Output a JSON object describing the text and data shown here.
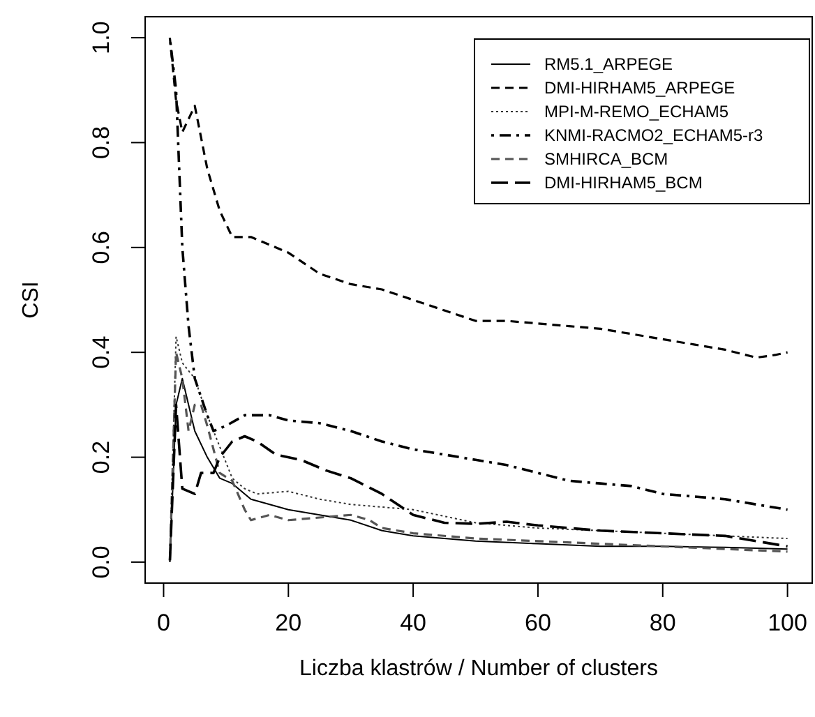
{
  "chart_data": {
    "type": "line",
    "xlabel": "Liczba klastrów / Number of clusters",
    "ylabel": "CSI",
    "xlim": [
      -2.96,
      103.96
    ],
    "ylim": [
      -0.04,
      1.04
    ],
    "xticks": [
      0,
      20,
      40,
      60,
      80,
      100
    ],
    "yticks": [
      {
        "value": 0,
        "label": "0.0"
      },
      {
        "value": 0.2,
        "label": "0.2"
      },
      {
        "value": 0.4,
        "label": "0.4"
      },
      {
        "value": 0.6,
        "label": "0.6"
      },
      {
        "value": 0.8,
        "label": "0.8"
      },
      {
        "value": 1,
        "label": "1.0"
      }
    ],
    "legend": "top right",
    "grid": false,
    "series": [
      {
        "name": "RM5.1_ARPEGE",
        "color": "#000000",
        "line_style": "solid",
        "x": [
          1,
          2,
          3,
          5,
          7,
          9,
          11,
          14,
          20,
          25,
          30,
          35,
          40,
          50,
          60,
          70,
          80,
          90,
          100
        ],
        "values": [
          0,
          0.3,
          0.35,
          0.25,
          0.2,
          0.16,
          0.15,
          0.12,
          0.1,
          0.09,
          0.08,
          0.06,
          0.05,
          0.04,
          0.035,
          0.03,
          0.03,
          0.028,
          0.025
        ]
      },
      {
        "name": "DMI-HIRHAM5_ARPEGE",
        "color": "#000000",
        "line_style": "dashed",
        "x": [
          1,
          2,
          3,
          5,
          7,
          9,
          11,
          14,
          20,
          25,
          30,
          35,
          40,
          45,
          50,
          55,
          60,
          65,
          70,
          75,
          80,
          85,
          90,
          95,
          98,
          100
        ],
        "values": [
          1,
          0.88,
          0.82,
          0.87,
          0.75,
          0.67,
          0.62,
          0.62,
          0.59,
          0.55,
          0.53,
          0.52,
          0.5,
          0.48,
          0.46,
          0.46,
          0.455,
          0.45,
          0.445,
          0.435,
          0.425,
          0.415,
          0.405,
          0.39,
          0.395,
          0.4
        ]
      },
      {
        "name": "MPI-M-REMO_ECHAM5",
        "color": "#333333",
        "line_style": "dotted",
        "x": [
          1,
          2,
          3,
          5,
          7,
          9,
          11,
          13,
          15,
          20,
          25,
          30,
          35,
          40,
          50,
          60,
          70,
          80,
          90,
          100
        ],
        "values": [
          0,
          0.43,
          0.38,
          0.35,
          0.28,
          0.22,
          0.16,
          0.14,
          0.13,
          0.135,
          0.12,
          0.11,
          0.105,
          0.1,
          0.075,
          0.065,
          0.06,
          0.055,
          0.05,
          0.045
        ]
      },
      {
        "name": "KNMI-RACMO2_ECHAM5-r3",
        "color": "#000000",
        "line_style": "dashdot",
        "x": [
          1,
          2,
          3,
          4,
          5,
          7,
          8,
          10,
          13,
          17,
          20,
          25,
          30,
          35,
          40,
          45,
          50,
          55,
          60,
          65,
          70,
          75,
          80,
          85,
          90,
          95,
          100
        ],
        "values": [
          1,
          0.9,
          0.6,
          0.45,
          0.35,
          0.28,
          0.25,
          0.26,
          0.28,
          0.28,
          0.27,
          0.265,
          0.25,
          0.23,
          0.215,
          0.205,
          0.195,
          0.185,
          0.17,
          0.155,
          0.15,
          0.145,
          0.13,
          0.125,
          0.12,
          0.11,
          0.1
        ]
      },
      {
        "name": "SMHIRCA_BCM",
        "color": "#555555",
        "line_style": "dashed",
        "x": [
          1,
          2,
          3,
          4,
          5,
          6,
          7,
          9,
          11,
          13,
          14,
          17,
          20,
          25,
          30,
          33,
          35,
          40,
          50,
          60,
          70,
          80,
          90,
          100
        ],
        "values": [
          0,
          0.4,
          0.35,
          0.25,
          0.3,
          0.3,
          0.26,
          0.17,
          0.155,
          0.1,
          0.08,
          0.09,
          0.08,
          0.085,
          0.09,
          0.08,
          0.065,
          0.055,
          0.045,
          0.04,
          0.035,
          0.03,
          0.025,
          0.02
        ]
      },
      {
        "name": "DMI-HIRHAM5_BCM",
        "color": "#000000",
        "line_style": "longdash",
        "x": [
          1,
          2,
          3,
          5,
          6,
          8,
          9,
          11,
          13,
          15,
          18,
          22,
          26,
          30,
          35,
          40,
          45,
          50,
          55,
          60,
          65,
          70,
          80,
          90,
          95,
          100
        ],
        "values": [
          0,
          0.3,
          0.14,
          0.13,
          0.17,
          0.17,
          0.2,
          0.23,
          0.24,
          0.23,
          0.205,
          0.195,
          0.175,
          0.16,
          0.13,
          0.09,
          0.075,
          0.073,
          0.077,
          0.07,
          0.065,
          0.06,
          0.055,
          0.05,
          0.04,
          0.03
        ]
      }
    ]
  }
}
